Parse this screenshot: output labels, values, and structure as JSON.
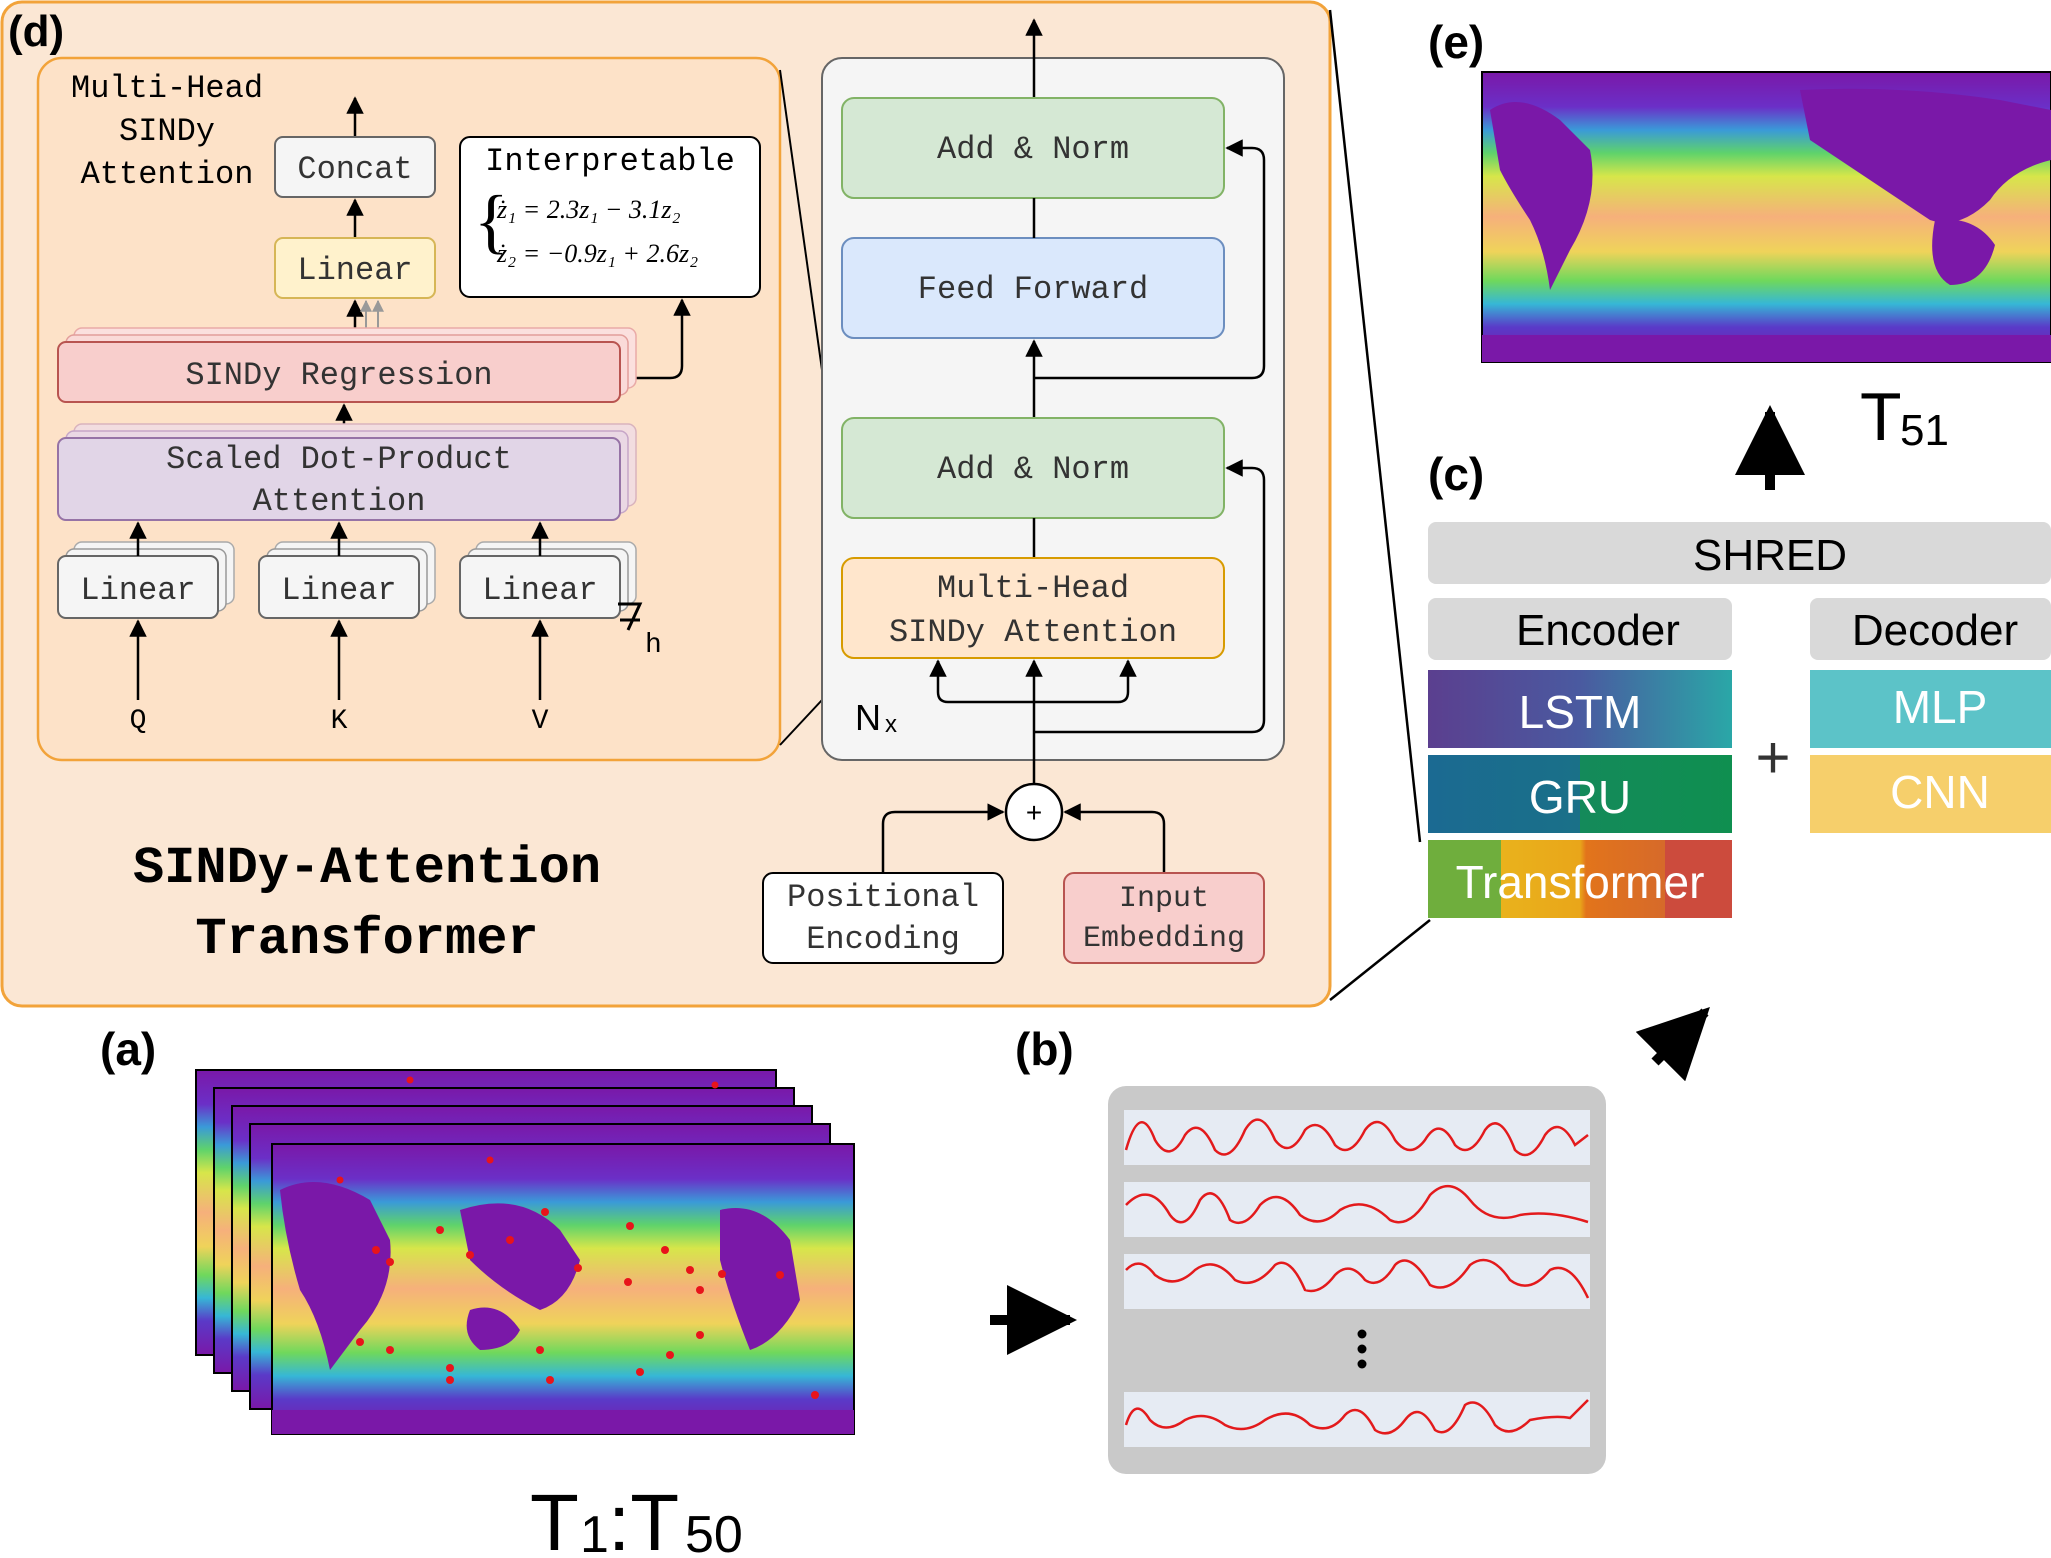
{
  "panels": {
    "a": "(a)",
    "b": "(b)",
    "c": "(c)",
    "d": "(d)",
    "e": "(e)"
  },
  "panel_d": {
    "title_line1": "SINDy-Attention",
    "title_line2": "Transformer",
    "mhsa_caption": [
      "Multi-Head",
      "SINDy",
      "Attention"
    ],
    "concat": "Concat",
    "linear_top": "Linear",
    "interpretable_title": "Interpretable",
    "equations": [
      "ż₁ = 2.3z₁ − 3.1z₂",
      "ż₂ = −0.9z₁ + 2.6z₂"
    ],
    "sindy_regression": "SINDy Regression",
    "scaled_dot_product": [
      "Scaled Dot-Product",
      "Attention"
    ],
    "linear_inputs": [
      "Linear",
      "Linear",
      "Linear"
    ],
    "h_label": "h",
    "inputs": [
      "Q",
      "K",
      "V"
    ],
    "add_norm_top": "Add & Norm",
    "feed_forward": "Feed Forward",
    "add_norm_bottom": "Add & Norm",
    "mhsa_block": [
      "Multi-Head",
      "SINDy Attention"
    ],
    "nx": "N",
    "nx_sub": "x",
    "plus": "+",
    "positional_encoding": [
      "Positional",
      "Encoding"
    ],
    "input_embedding": [
      "Input",
      "Embedding"
    ]
  },
  "panel_a": {
    "time_label_main": "T",
    "time_label_sub1": "1",
    "time_label_colon": ":T",
    "time_label_sub2": "50"
  },
  "panel_c": {
    "shred": "SHRED",
    "encoder": "Encoder",
    "decoder": "Decoder",
    "encoder_options": [
      "LSTM",
      "GRU",
      "Transformer"
    ],
    "decoder_options": [
      "MLP",
      "CNN"
    ],
    "plus": "+"
  },
  "panel_e": {
    "time_label_main": "T",
    "time_label_sub": "51"
  },
  "colors": {
    "panel_d_bg": "#fbe7d4",
    "panel_d_border": "#f2a33a",
    "inner_mhsa_bg": "#fde2c8",
    "add_norm": "#d5e8d4",
    "add_norm_border": "#82b366",
    "feed_forward": "#dae8fc",
    "feed_forward_border": "#6c8ebf",
    "sindy_reg": "#f8cecc",
    "sindy_reg_border": "#b85450",
    "scaled_dp": "#e1d5e7",
    "scaled_dp_border": "#9673a6",
    "linear_yellow": "#fff2cc",
    "linear_yellow_border": "#d6b656",
    "mhsa_block": "#ffe6cc",
    "mhsa_block_border": "#d79b00",
    "gray_box": "#d9d9d9",
    "lstm": "#5a4b8f",
    "gru": "#1f6e8c",
    "transformer": "#6fae3d",
    "mlp": "#5cc3c8",
    "cnn": "#f6cf6b"
  }
}
